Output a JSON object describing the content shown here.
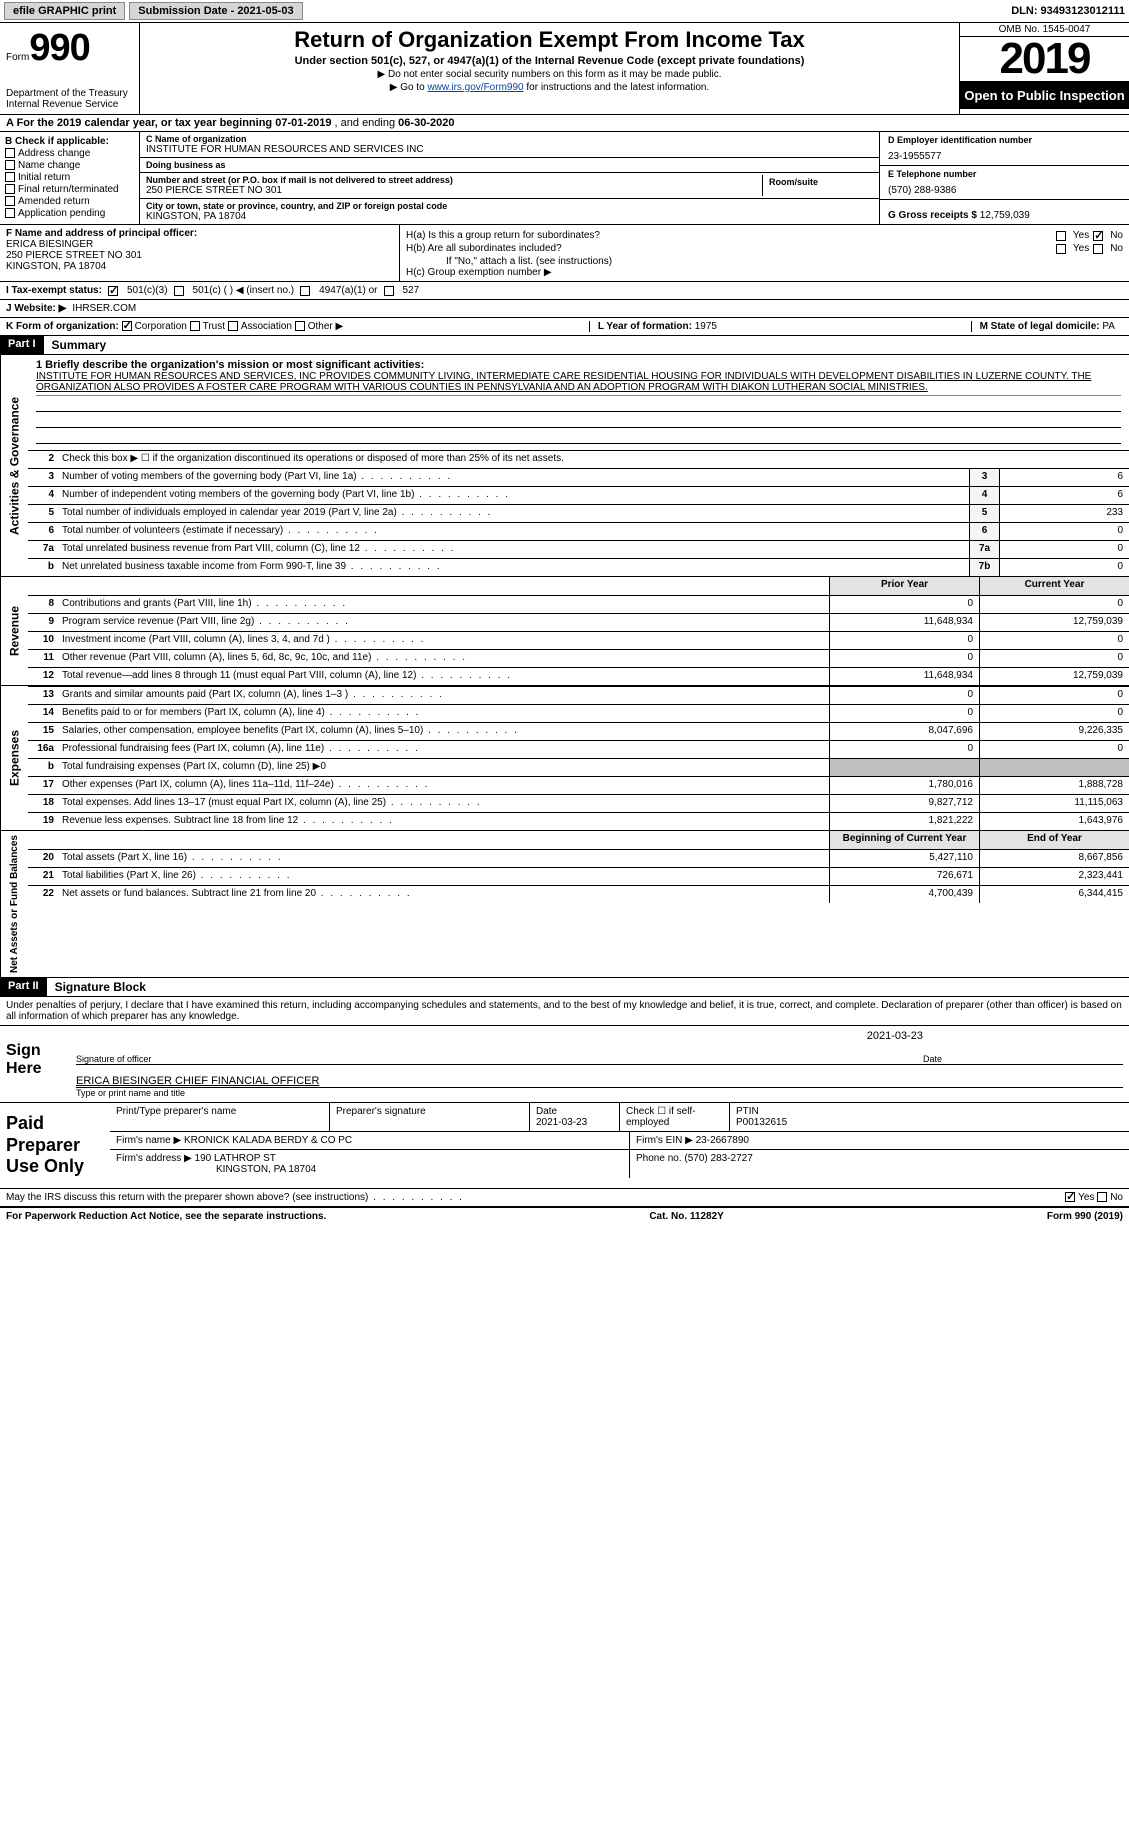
{
  "topbar": {
    "efile": "efile GRAPHIC print",
    "submission": "Submission Date - 2021-05-03",
    "dln": "DLN: 93493123012111"
  },
  "header": {
    "form_label": "Form",
    "form_num": "990",
    "dept1": "Department of the Treasury",
    "dept2": "Internal Revenue Service",
    "title": "Return of Organization Exempt From Income Tax",
    "sub": "Under section 501(c), 527, or 4947(a)(1) of the Internal Revenue Code (except private foundations)",
    "note1": "▶ Do not enter social security numbers on this form as it may be made public.",
    "note2a": "▶ Go to ",
    "note2_link": "www.irs.gov/Form990",
    "note2b": " for instructions and the latest information.",
    "omb": "OMB No. 1545-0047",
    "year": "2019",
    "open": "Open to Public Inspection"
  },
  "period": {
    "prefix": "A For the 2019 calendar year, or tax year beginning ",
    "begin": "07-01-2019",
    "mid": " , and ending ",
    "end": "06-30-2020"
  },
  "boxB": {
    "label": "B Check if applicable:",
    "opts": [
      "Address change",
      "Name change",
      "Initial return",
      "Final return/terminated",
      "Amended return",
      "Application pending"
    ]
  },
  "boxC": {
    "name_lbl": "C Name of organization",
    "name": "INSTITUTE FOR HUMAN RESOURCES AND SERVICES INC",
    "dba_lbl": "Doing business as",
    "dba": "",
    "addr_lbl": "Number and street (or P.O. box if mail is not delivered to street address)",
    "room_lbl": "Room/suite",
    "addr": "250 PIERCE STREET NO 301",
    "city_lbl": "City or town, state or province, country, and ZIP or foreign postal code",
    "city": "KINGSTON, PA  18704"
  },
  "boxD": {
    "ein_lbl": "D Employer identification number",
    "ein": "23-1955577",
    "phone_lbl": "E Telephone number",
    "phone": "(570) 288-9386",
    "gross_lbl": "G Gross receipts $",
    "gross": "12,759,039"
  },
  "boxF": {
    "lbl": "F Name and address of principal officer:",
    "name": "ERICA BIESINGER",
    "addr1": "250 PIERCE STREET NO 301",
    "addr2": "KINGSTON, PA  18704"
  },
  "boxH": {
    "ha": "H(a)  Is this a group return for subordinates?",
    "hb": "H(b)  Are all subordinates included?",
    "hb_note": "If \"No,\" attach a list. (see instructions)",
    "hc": "H(c)  Group exemption number ▶",
    "yes": "Yes",
    "no": "No"
  },
  "taxexempt": {
    "lbl": "I  Tax-exempt status:",
    "o1": "501(c)(3)",
    "o2": "501(c) (  ) ◀ (insert no.)",
    "o3": "4947(a)(1) or",
    "o4": "527"
  },
  "website": {
    "lbl": "J  Website: ▶",
    "val": "IHRSER.COM"
  },
  "korg": {
    "lbl": "K Form of organization:",
    "o1": "Corporation",
    "o2": "Trust",
    "o3": "Association",
    "o4": "Other ▶",
    "l_lbl": "L Year of formation:",
    "l_val": "1975",
    "m_lbl": "M State of legal domicile:",
    "m_val": "PA"
  },
  "part1": {
    "hdr": "Part I",
    "title": "Summary"
  },
  "mission": {
    "line1_lbl": "1  Briefly describe the organization's mission or most significant activities:",
    "text": "INSTITUTE FOR HUMAN RESOURCES AND SERVICES, INC PROVIDES COMMUNITY LIVING, INTERMEDIATE CARE RESIDENTIAL HOUSING FOR INDIVIDUALS WITH DEVELOPMENT DISABILITIES IN LUZERNE COUNTY. THE ORGANIZATION ALSO PROVIDES A FOSTER CARE PROGRAM WITH VARIOUS COUNTIES IN PENNSYLVANIA AND AN ADOPTION PROGRAM WITH DIAKON LUTHERAN SOCIAL MINISTRIES."
  },
  "gov_lines": [
    {
      "n": "2",
      "t": "Check this box ▶ ☐  if the organization discontinued its operations or disposed of more than 25% of its net assets."
    },
    {
      "n": "3",
      "t": "Number of voting members of the governing body (Part VI, line 1a)",
      "box": "3",
      "v": "6"
    },
    {
      "n": "4",
      "t": "Number of independent voting members of the governing body (Part VI, line 1b)",
      "box": "4",
      "v": "6"
    },
    {
      "n": "5",
      "t": "Total number of individuals employed in calendar year 2019 (Part V, line 2a)",
      "box": "5",
      "v": "233"
    },
    {
      "n": "6",
      "t": "Total number of volunteers (estimate if necessary)",
      "box": "6",
      "v": "0"
    },
    {
      "n": "7a",
      "t": "Total unrelated business revenue from Part VIII, column (C), line 12",
      "box": "7a",
      "v": "0"
    },
    {
      "n": "b",
      "t": "Net unrelated business taxable income from Form 990-T, line 39",
      "box": "7b",
      "v": "0"
    }
  ],
  "col_hdrs": {
    "prior": "Prior Year",
    "current": "Current Year",
    "beg": "Beginning of Current Year",
    "end": "End of Year"
  },
  "revenue": [
    {
      "n": "8",
      "t": "Contributions and grants (Part VIII, line 1h)",
      "p": "0",
      "c": "0"
    },
    {
      "n": "9",
      "t": "Program service revenue (Part VIII, line 2g)",
      "p": "11,648,934",
      "c": "12,759,039"
    },
    {
      "n": "10",
      "t": "Investment income (Part VIII, column (A), lines 3, 4, and 7d )",
      "p": "0",
      "c": "0"
    },
    {
      "n": "11",
      "t": "Other revenue (Part VIII, column (A), lines 5, 6d, 8c, 9c, 10c, and 11e)",
      "p": "0",
      "c": "0"
    },
    {
      "n": "12",
      "t": "Total revenue—add lines 8 through 11 (must equal Part VIII, column (A), line 12)",
      "p": "11,648,934",
      "c": "12,759,039"
    }
  ],
  "expenses": [
    {
      "n": "13",
      "t": "Grants and similar amounts paid (Part IX, column (A), lines 1–3 )",
      "p": "0",
      "c": "0"
    },
    {
      "n": "14",
      "t": "Benefits paid to or for members (Part IX, column (A), line 4)",
      "p": "0",
      "c": "0"
    },
    {
      "n": "15",
      "t": "Salaries, other compensation, employee benefits (Part IX, column (A), lines 5–10)",
      "p": "8,047,696",
      "c": "9,226,335"
    },
    {
      "n": "16a",
      "t": "Professional fundraising fees (Part IX, column (A), line 11e)",
      "p": "0",
      "c": "0"
    },
    {
      "n": "b",
      "t": "Total fundraising expenses (Part IX, column (D), line 25) ▶0",
      "shade": true
    },
    {
      "n": "17",
      "t": "Other expenses (Part IX, column (A), lines 11a–11d, 11f–24e)",
      "p": "1,780,016",
      "c": "1,888,728"
    },
    {
      "n": "18",
      "t": "Total expenses. Add lines 13–17 (must equal Part IX, column (A), line 25)",
      "p": "9,827,712",
      "c": "11,115,063"
    },
    {
      "n": "19",
      "t": "Revenue less expenses. Subtract line 18 from line 12",
      "p": "1,821,222",
      "c": "1,643,976"
    }
  ],
  "netassets": [
    {
      "n": "20",
      "t": "Total assets (Part X, line 16)",
      "p": "5,427,110",
      "c": "8,667,856"
    },
    {
      "n": "21",
      "t": "Total liabilities (Part X, line 26)",
      "p": "726,671",
      "c": "2,323,441"
    },
    {
      "n": "22",
      "t": "Net assets or fund balances. Subtract line 21 from line 20",
      "p": "4,700,439",
      "c": "6,344,415"
    }
  ],
  "tabs": {
    "gov": "Activities & Governance",
    "rev": "Revenue",
    "exp": "Expenses",
    "net": "Net Assets or Fund Balances"
  },
  "part2": {
    "hdr": "Part II",
    "title": "Signature Block"
  },
  "sig_para": "Under penalties of perjury, I declare that I have examined this return, including accompanying schedules and statements, and to the best of my knowledge and belief, it is true, correct, and complete. Declaration of preparer (other than officer) is based on all information of which preparer has any knowledge.",
  "sign": {
    "here": "Sign Here",
    "sig_lbl": "Signature of officer",
    "date_lbl": "Date",
    "date": "2021-03-23",
    "name": "ERICA BIESINGER  CHIEF FINANCIAL OFFICER",
    "name_lbl": "Type or print name and title"
  },
  "paid": {
    "lbl": "Paid Preparer Use Only",
    "h1": "Print/Type preparer's name",
    "h2": "Preparer's signature",
    "h3": "Date",
    "h3v": "2021-03-23",
    "h4": "Check ☐ if self-employed",
    "h5": "PTIN",
    "h5v": "P00132615",
    "firm_lbl": "Firm's name    ▶",
    "firm": "KRONICK KALADA BERDY & CO PC",
    "ein_lbl": "Firm's EIN ▶",
    "ein": "23-2667890",
    "addr_lbl": "Firm's address ▶",
    "addr1": "190 LATHROP ST",
    "addr2": "KINGSTON, PA  18704",
    "phone_lbl": "Phone no.",
    "phone": "(570) 283-2727"
  },
  "discuss": {
    "txt": "May the IRS discuss this return with the preparer shown above? (see instructions)",
    "yes": "Yes",
    "no": "No"
  },
  "footer": {
    "pra": "For Paperwork Reduction Act Notice, see the separate instructions.",
    "cat": "Cat. No. 11282Y",
    "form": "Form 990 (2019)"
  }
}
